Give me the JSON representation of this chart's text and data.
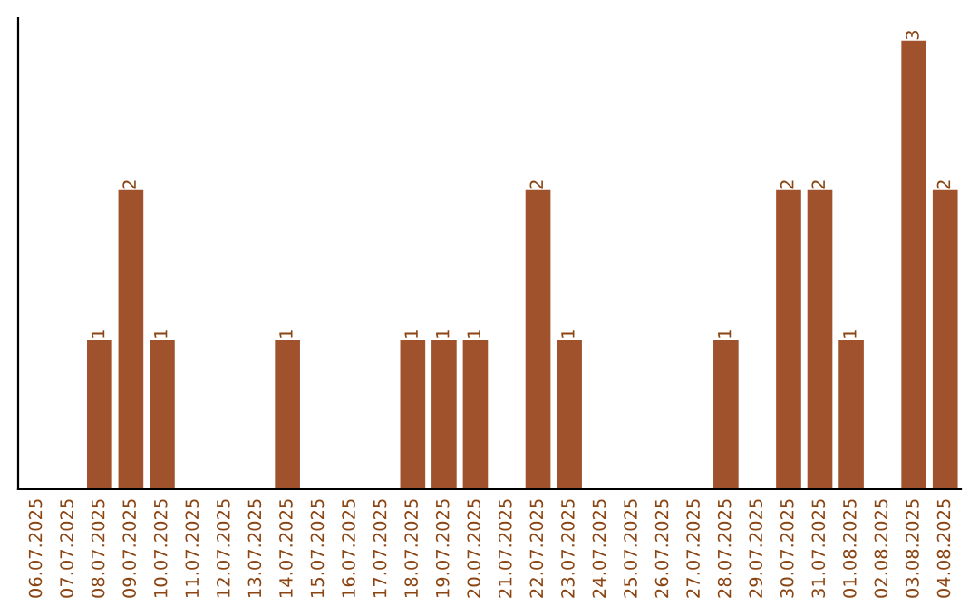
{
  "chart_data": {
    "type": "bar",
    "categories": [
      "06.07.2025",
      "07.07.2025",
      "08.07.2025",
      "09.07.2025",
      "10.07.2025",
      "11.07.2025",
      "12.07.2025",
      "13.07.2025",
      "14.07.2025",
      "15.07.2025",
      "16.07.2025",
      "17.07.2025",
      "18.07.2025",
      "19.07.2025",
      "20.07.2025",
      "21.07.2025",
      "22.07.2025",
      "23.07.2025",
      "24.07.2025",
      "25.07.2025",
      "26.07.2025",
      "27.07.2025",
      "28.07.2025",
      "29.07.2025",
      "30.07.2025",
      "31.07.2025",
      "01.08.2025",
      "02.08.2025",
      "03.08.2025",
      "04.08.2025"
    ],
    "values": [
      0,
      0,
      1,
      2,
      1,
      0,
      0,
      0,
      1,
      0,
      0,
      0,
      1,
      1,
      1,
      0,
      2,
      1,
      0,
      0,
      0,
      0,
      1,
      0,
      2,
      2,
      1,
      0,
      3,
      2
    ],
    "value_labels": [
      null,
      null,
      "1",
      "2",
      "1",
      null,
      null,
      null,
      "1",
      null,
      null,
      null,
      "1",
      "1",
      "1",
      null,
      "2",
      "1",
      null,
      null,
      null,
      null,
      "1",
      null,
      "2",
      "2",
      "1",
      null,
      "3",
      "2"
    ],
    "color": "#a0522d",
    "tick_labels": "x",
    "grid": false,
    "legend": false
  }
}
